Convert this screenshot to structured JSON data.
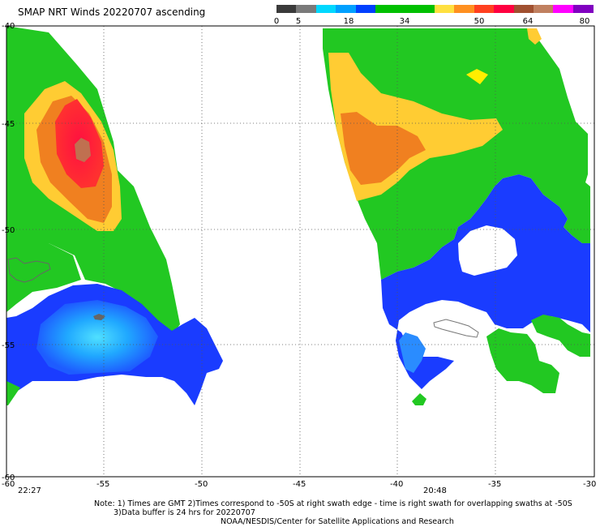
{
  "title": "SMAP NRT Winds 20220707 ascending",
  "colorbar": {
    "ticks": [
      "0",
      "5",
      "18",
      "34",
      "50",
      "64",
      "80"
    ],
    "segments": [
      "#3a3a3a",
      "#7a7a7a",
      "#00d8ff",
      "#00a0ff",
      "#0040ff",
      "#00c000",
      "#00c000",
      "#00c000",
      "#ffe040",
      "#ff9020",
      "#ff4020",
      "#ff0040",
      "#a05030",
      "#c08060",
      "#ff00ff",
      "#8000c0"
    ]
  },
  "axes": {
    "lon_labels": [
      "-60",
      "-55",
      "-50",
      "-45",
      "-40",
      "-35",
      "-30"
    ],
    "lat_labels": [
      "-40",
      "-45",
      "-50",
      "-55",
      "-60"
    ]
  },
  "times": {
    "left": "22:27",
    "right": "20:48"
  },
  "footer": {
    "line1": "Note: 1) Times are GMT 2)Times correspond to -50S at right swath edge - time is right swath for overlapping swaths at -50S",
    "line2": "3)Data buffer is 24 hrs for 20220707",
    "line3": "NOAA/NESDIS/Center for Satellite Applications and Research"
  },
  "wind_colors": {
    "green": "#22c822",
    "blue": "#1a3cff",
    "lightblue": "#2a8cff",
    "cyan": "#40d0ff",
    "yellow": "#ffcc33",
    "orange": "#f08020",
    "red": "#ff2040",
    "brown": "#c07050"
  }
}
